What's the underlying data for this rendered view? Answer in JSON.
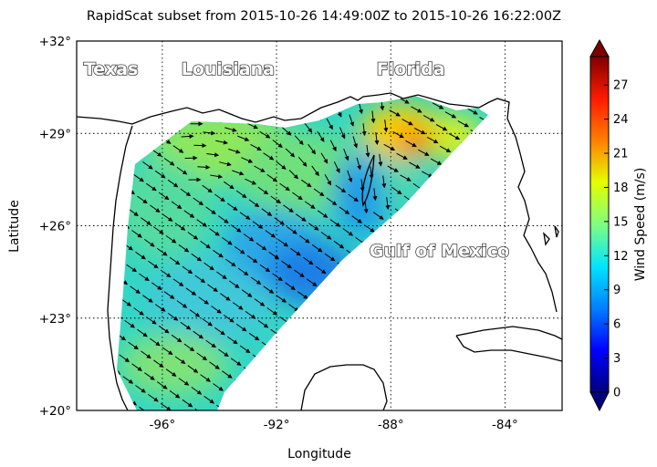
{
  "title": "RapidScat subset from 2015-10-26 14:49:00Z to 2015-10-26 16:22:00Z",
  "axes": {
    "xlabel": "Longitude",
    "ylabel": "Latitude",
    "x_ticks": [
      {
        "value": -96,
        "label": "-96°"
      },
      {
        "value": -92,
        "label": "-92°"
      },
      {
        "value": -88,
        "label": "-88°"
      },
      {
        "value": -84,
        "label": "-84°"
      }
    ],
    "y_ticks": [
      {
        "value": 20,
        "label": "+20°"
      },
      {
        "value": 23,
        "label": "+23°"
      },
      {
        "value": 26,
        "label": "+26°"
      },
      {
        "value": 29,
        "label": "+29°"
      },
      {
        "value": 32,
        "label": "+32°"
      }
    ],
    "lon_range": [
      -99,
      -82
    ],
    "lat_range": [
      20,
      32
    ],
    "grid": "dotted"
  },
  "labels": [
    {
      "text": "Texas",
      "lon": -97.8,
      "lat": 30.9
    },
    {
      "text": "Louisiana",
      "lon": -93.7,
      "lat": 30.9
    },
    {
      "text": "Florida",
      "lon": -87.3,
      "lat": 30.9
    },
    {
      "text": "Gulf of Mexico",
      "lon": -86.3,
      "lat": 25.0
    }
  ],
  "colorbar": {
    "label": "Wind Speed (m/s)",
    "min": 0,
    "max": 29.5,
    "ticks": [
      {
        "value": 0,
        "label": "0"
      },
      {
        "value": 3,
        "label": "3"
      },
      {
        "value": 6,
        "label": "6"
      },
      {
        "value": 9,
        "label": "9"
      },
      {
        "value": 12,
        "label": "12"
      },
      {
        "value": 15,
        "label": "15"
      },
      {
        "value": 18,
        "label": "18"
      },
      {
        "value": 21,
        "label": "21"
      },
      {
        "value": 24,
        "label": "24"
      },
      {
        "value": 27,
        "label": "27"
      }
    ],
    "colors": [
      "#00007f",
      "#0000ff",
      "#007fff",
      "#00e5ff",
      "#7fff7f",
      "#e5ff00",
      "#ff7f00",
      "#ff1a00",
      "#7f0000"
    ]
  },
  "colors": {
    "coastline": "#000000",
    "arrows": "#000000"
  }
}
